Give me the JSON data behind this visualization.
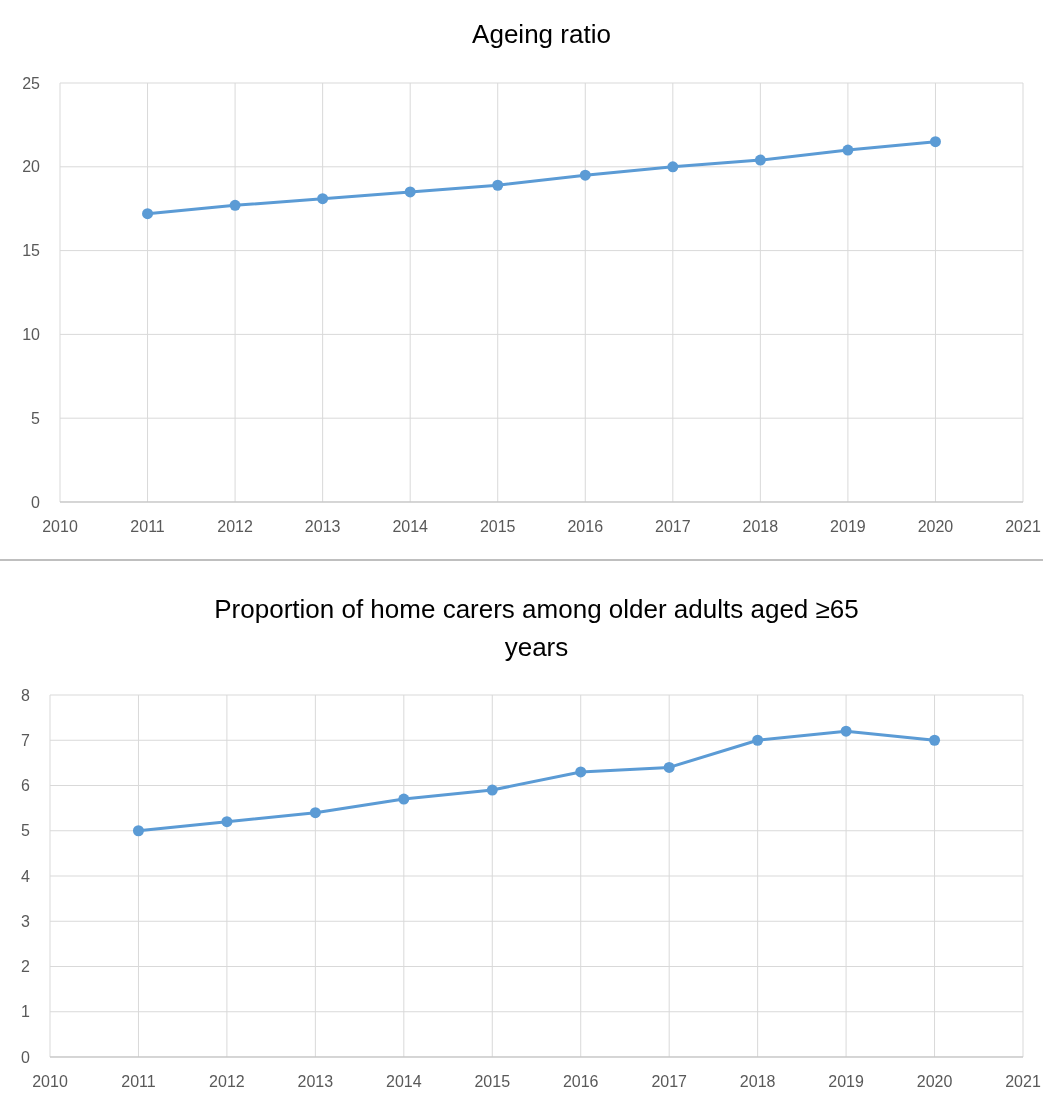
{
  "chart_data": [
    {
      "type": "line",
      "title": "Ageing ratio",
      "x": [
        2011,
        2012,
        2013,
        2014,
        2015,
        2016,
        2017,
        2018,
        2019,
        2020
      ],
      "series": [
        {
          "color": "#5b9bd5",
          "values": [
            17.2,
            17.7,
            18.1,
            18.5,
            18.9,
            19.5,
            20.0,
            20.4,
            21.0,
            21.5
          ]
        }
      ],
      "xlim": [
        2010,
        2021
      ],
      "xticks": [
        2010,
        2011,
        2012,
        2013,
        2014,
        2015,
        2016,
        2017,
        2018,
        2019,
        2020,
        2021
      ],
      "ylim": [
        0,
        25
      ],
      "yticks": [
        0,
        5,
        10,
        15,
        20,
        25
      ],
      "grid": true,
      "marker": "circle"
    },
    {
      "type": "line",
      "title": "Proportion of home carers among older adults aged ≥65 years",
      "x": [
        2011,
        2012,
        2013,
        2014,
        2015,
        2016,
        2017,
        2018,
        2019,
        2020
      ],
      "series": [
        {
          "color": "#5b9bd5",
          "values": [
            5.0,
            5.2,
            5.4,
            5.7,
            5.9,
            6.3,
            6.4,
            7.0,
            7.2,
            7.0
          ]
        }
      ],
      "xlim": [
        2010,
        2021
      ],
      "xticks": [
        2010,
        2011,
        2012,
        2013,
        2014,
        2015,
        2016,
        2017,
        2018,
        2019,
        2020,
        2021
      ],
      "ylim": [
        0,
        8
      ],
      "yticks": [
        0,
        1,
        2,
        3,
        4,
        5,
        6,
        7,
        8
      ],
      "grid": true,
      "marker": "circle"
    }
  ]
}
